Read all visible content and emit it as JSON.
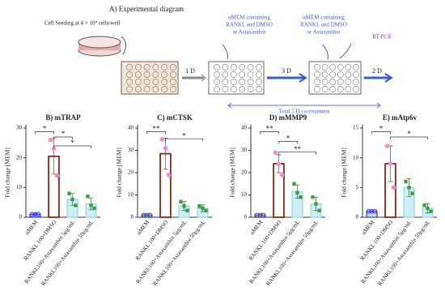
{
  "diagram": {
    "title": "A) Experimental diagram",
    "seeding": "Cell Seeding at 4 × 10⁴ cells/well",
    "step1": [
      "αMEM containing",
      "RANKL and  DMSO",
      "or Astaxanthin"
    ],
    "step2": [
      "αMEM containing",
      "RANKL and  DMSO",
      "or Astaxanthin"
    ],
    "readout": "RT-PCR",
    "d1": "1 D",
    "d2": "3 D",
    "d3": "2 D",
    "total": "Total 5 D co-treatment"
  },
  "chart_data": [
    {
      "type": "bar",
      "title": "B) mTRAP",
      "y_label": "Fold change [MEM]",
      "categories": [
        "αMEM",
        "RANKL 100+DMSO",
        "RANKL100+Astaxanthin 5μg/mL",
        "RANKL100+Astaxanthin 50μg/mL"
      ],
      "values": [
        1,
        20.5,
        6,
        4.5
      ],
      "errors": [
        0.3,
        6,
        2,
        2
      ],
      "points": [
        [
          1,
          1,
          1
        ],
        [
          26,
          23,
          14
        ],
        [
          8,
          6,
          4
        ],
        [
          7,
          4,
          3
        ]
      ],
      "fill": [
        "#c9d9f5",
        "#ffffff",
        "#cdeff8",
        "#cdeff8"
      ],
      "stroke": [
        "#3b3bd0",
        "#8b2a1a",
        "#8fd6ee",
        "#8fd6ee"
      ],
      "point_colors": [
        "#3b3bd0",
        "#f08cc8",
        "#3aa03a",
        "#3aa03a"
      ],
      "significance": [
        "*",
        "*",
        "*"
      ],
      "ylim": [
        0,
        30
      ],
      "yticks": [
        0,
        10,
        20,
        30
      ]
    },
    {
      "type": "bar",
      "title": "C) mCTSK",
      "y_label": "Fold change [MEM]",
      "categories": [
        "αMEM",
        "RANKL 100+DMSO",
        "RANKL100+Astaxanthin 5μg/mL",
        "RANKL100+Astaxanthin 50μg/mL"
      ],
      "values": [
        1,
        28.5,
        5,
        4
      ],
      "errors": [
        0.2,
        7,
        2,
        1.5
      ],
      "points": [
        [
          1,
          1,
          1
        ],
        [
          35,
          31,
          19
        ],
        [
          7,
          5,
          3
        ],
        [
          5,
          4,
          3
        ]
      ],
      "fill": [
        "#c9d9f5",
        "#ffffff",
        "#cdeff8",
        "#cdeff8"
      ],
      "stroke": [
        "#3b3bd0",
        "#8b2a1a",
        "#8fd6ee",
        "#8fd6ee"
      ],
      "point_colors": [
        "#3b3bd0",
        "#f08cc8",
        "#3aa03a",
        "#3aa03a"
      ],
      "significance": [
        "**",
        "*"
      ],
      "ylim": [
        0,
        40
      ],
      "yticks": [
        0,
        10,
        20,
        30,
        40
      ]
    },
    {
      "type": "bar",
      "title": "D) mMMP9",
      "y_label": "Fold change [MEM]",
      "categories": [
        "αMEM",
        "RANKL 100+DMSO",
        "RANKL100+Astaxanthin 5μg/mL",
        "RANKL100+Astaxanthin 50μg/mL"
      ],
      "values": [
        1,
        24,
        11.5,
        6
      ],
      "errors": [
        0.2,
        4,
        3,
        3
      ],
      "points": [
        [
          1,
          1,
          1
        ],
        [
          29,
          24,
          19
        ],
        [
          15,
          11,
          9
        ],
        [
          9,
          6,
          3
        ]
      ],
      "fill": [
        "#c9d9f5",
        "#ffffff",
        "#cdeff8",
        "#cdeff8"
      ],
      "stroke": [
        "#3b3bd0",
        "#8b2a1a",
        "#8fd6ee",
        "#8fd6ee"
      ],
      "point_colors": [
        "#3b3bd0",
        "#f08cc8",
        "#3aa03a",
        "#3aa03a"
      ],
      "significance": [
        "**",
        "*",
        "**"
      ],
      "ylim": [
        0,
        40
      ],
      "yticks": [
        0,
        10,
        20,
        30,
        40
      ]
    },
    {
      "type": "bar",
      "title": "E) mAtp6v",
      "y_label": "Fold change [MEM]",
      "categories": [
        "αMEM",
        "RANKL 100+DMSO",
        "RANKL100+Astaxanthin 5μg/mL",
        "RANKL100+Astaxanthin 50μg/mL"
      ],
      "values": [
        1,
        9,
        5,
        1.5
      ],
      "errors": [
        0.1,
        3,
        1.5,
        0.8
      ],
      "points": [
        [
          1,
          1,
          1
        ],
        [
          12,
          9,
          5
        ],
        [
          6,
          5,
          4
        ],
        [
          2,
          1.5,
          1
        ]
      ],
      "fill": [
        "#c9d9f5",
        "#ffffff",
        "#cdeff8",
        "#cdeff8"
      ],
      "stroke": [
        "#3b3bd0",
        "#8b2a1a",
        "#8fd6ee",
        "#8fd6ee"
      ],
      "point_colors": [
        "#3b3bd0",
        "#f08cc8",
        "#3aa03a",
        "#3aa03a"
      ],
      "significance": [
        "*",
        "*"
      ],
      "ylim": [
        0,
        15
      ],
      "yticks": [
        0,
        5,
        10,
        15
      ]
    }
  ]
}
